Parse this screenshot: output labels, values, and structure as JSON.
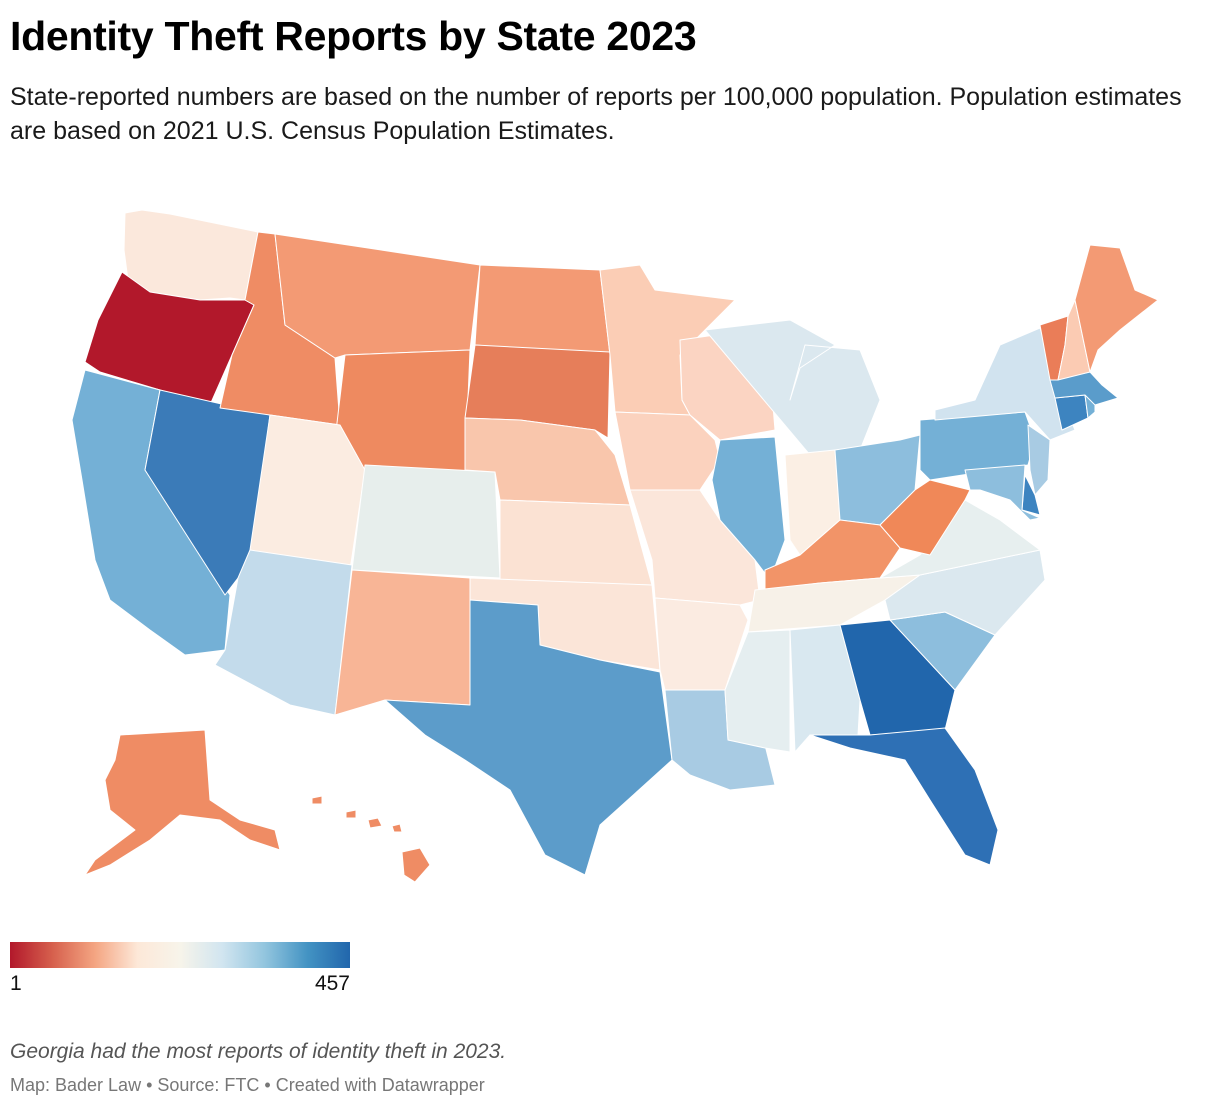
{
  "title": "Identity Theft Reports by State 2023",
  "subtitle": "State-reported numbers are based on the number of reports per 100,000 population. Population estimates are based on 2021 U.S. Census Population Estimates.",
  "legend": {
    "min_label": "1",
    "max_label": "457",
    "colors": [
      "#b2182b",
      "#d6604d",
      "#f4a582",
      "#fde8d8",
      "#f7f4ea",
      "#d1e5f0",
      "#92c5de",
      "#4393c3",
      "#2166ac"
    ]
  },
  "notes": "Georgia had the most reports of identity theft in 2023.",
  "footer": "Map: Bader Law  • Source: FTC • Created with Datawrapper",
  "state_colors": {
    "WA": "#fbe8dc",
    "OR": "#b2182b",
    "CA": "#74b0d6",
    "NV": "#3b7bb8",
    "ID": "#ef8c64",
    "MT": "#f39a74",
    "WY": "#ee8a60",
    "UT": "#fbece1",
    "AZ": "#c3dbeb",
    "CO": "#e7eeec",
    "NM": "#f8b596",
    "ND": "#f39a74",
    "SD": "#e67e5a",
    "NE": "#f9c6ac",
    "KS": "#fbe2d3",
    "OK": "#fbe5d8",
    "TX": "#5c9cca",
    "MN": "#fbcdb5",
    "IA": "#fbd2be",
    "MO": "#fbe6da",
    "AR": "#fbebe1",
    "LA": "#a8cbe3",
    "WI": "#fbd4c2",
    "IL": "#74b0d6",
    "MI": "#dbe8ef",
    "IN": "#fbefe4",
    "OH": "#8dbedd",
    "KY": "#f29468",
    "TN": "#f7f1e8",
    "MS": "#e5eef0",
    "AL": "#d9e8f0",
    "GA": "#2166ac",
    "FL": "#2e70b5",
    "SC": "#8dbedd",
    "NC": "#dbe8ef",
    "VA": "#e7efef",
    "WV": "#f08858",
    "PA": "#74b0d6",
    "NY": "#d1e3ef",
    "VT": "#ea7d58",
    "NH": "#fbcbb3",
    "ME": "#f39a74",
    "MA": "#5a9ccb",
    "RI": "#74b0d6",
    "CT": "#3d84c0",
    "NJ": "#a8cbe3",
    "DE": "#3d84c0",
    "MD": "#8dbedd",
    "AK": "#ef8c64",
    "HI": "#ef8c64"
  }
}
